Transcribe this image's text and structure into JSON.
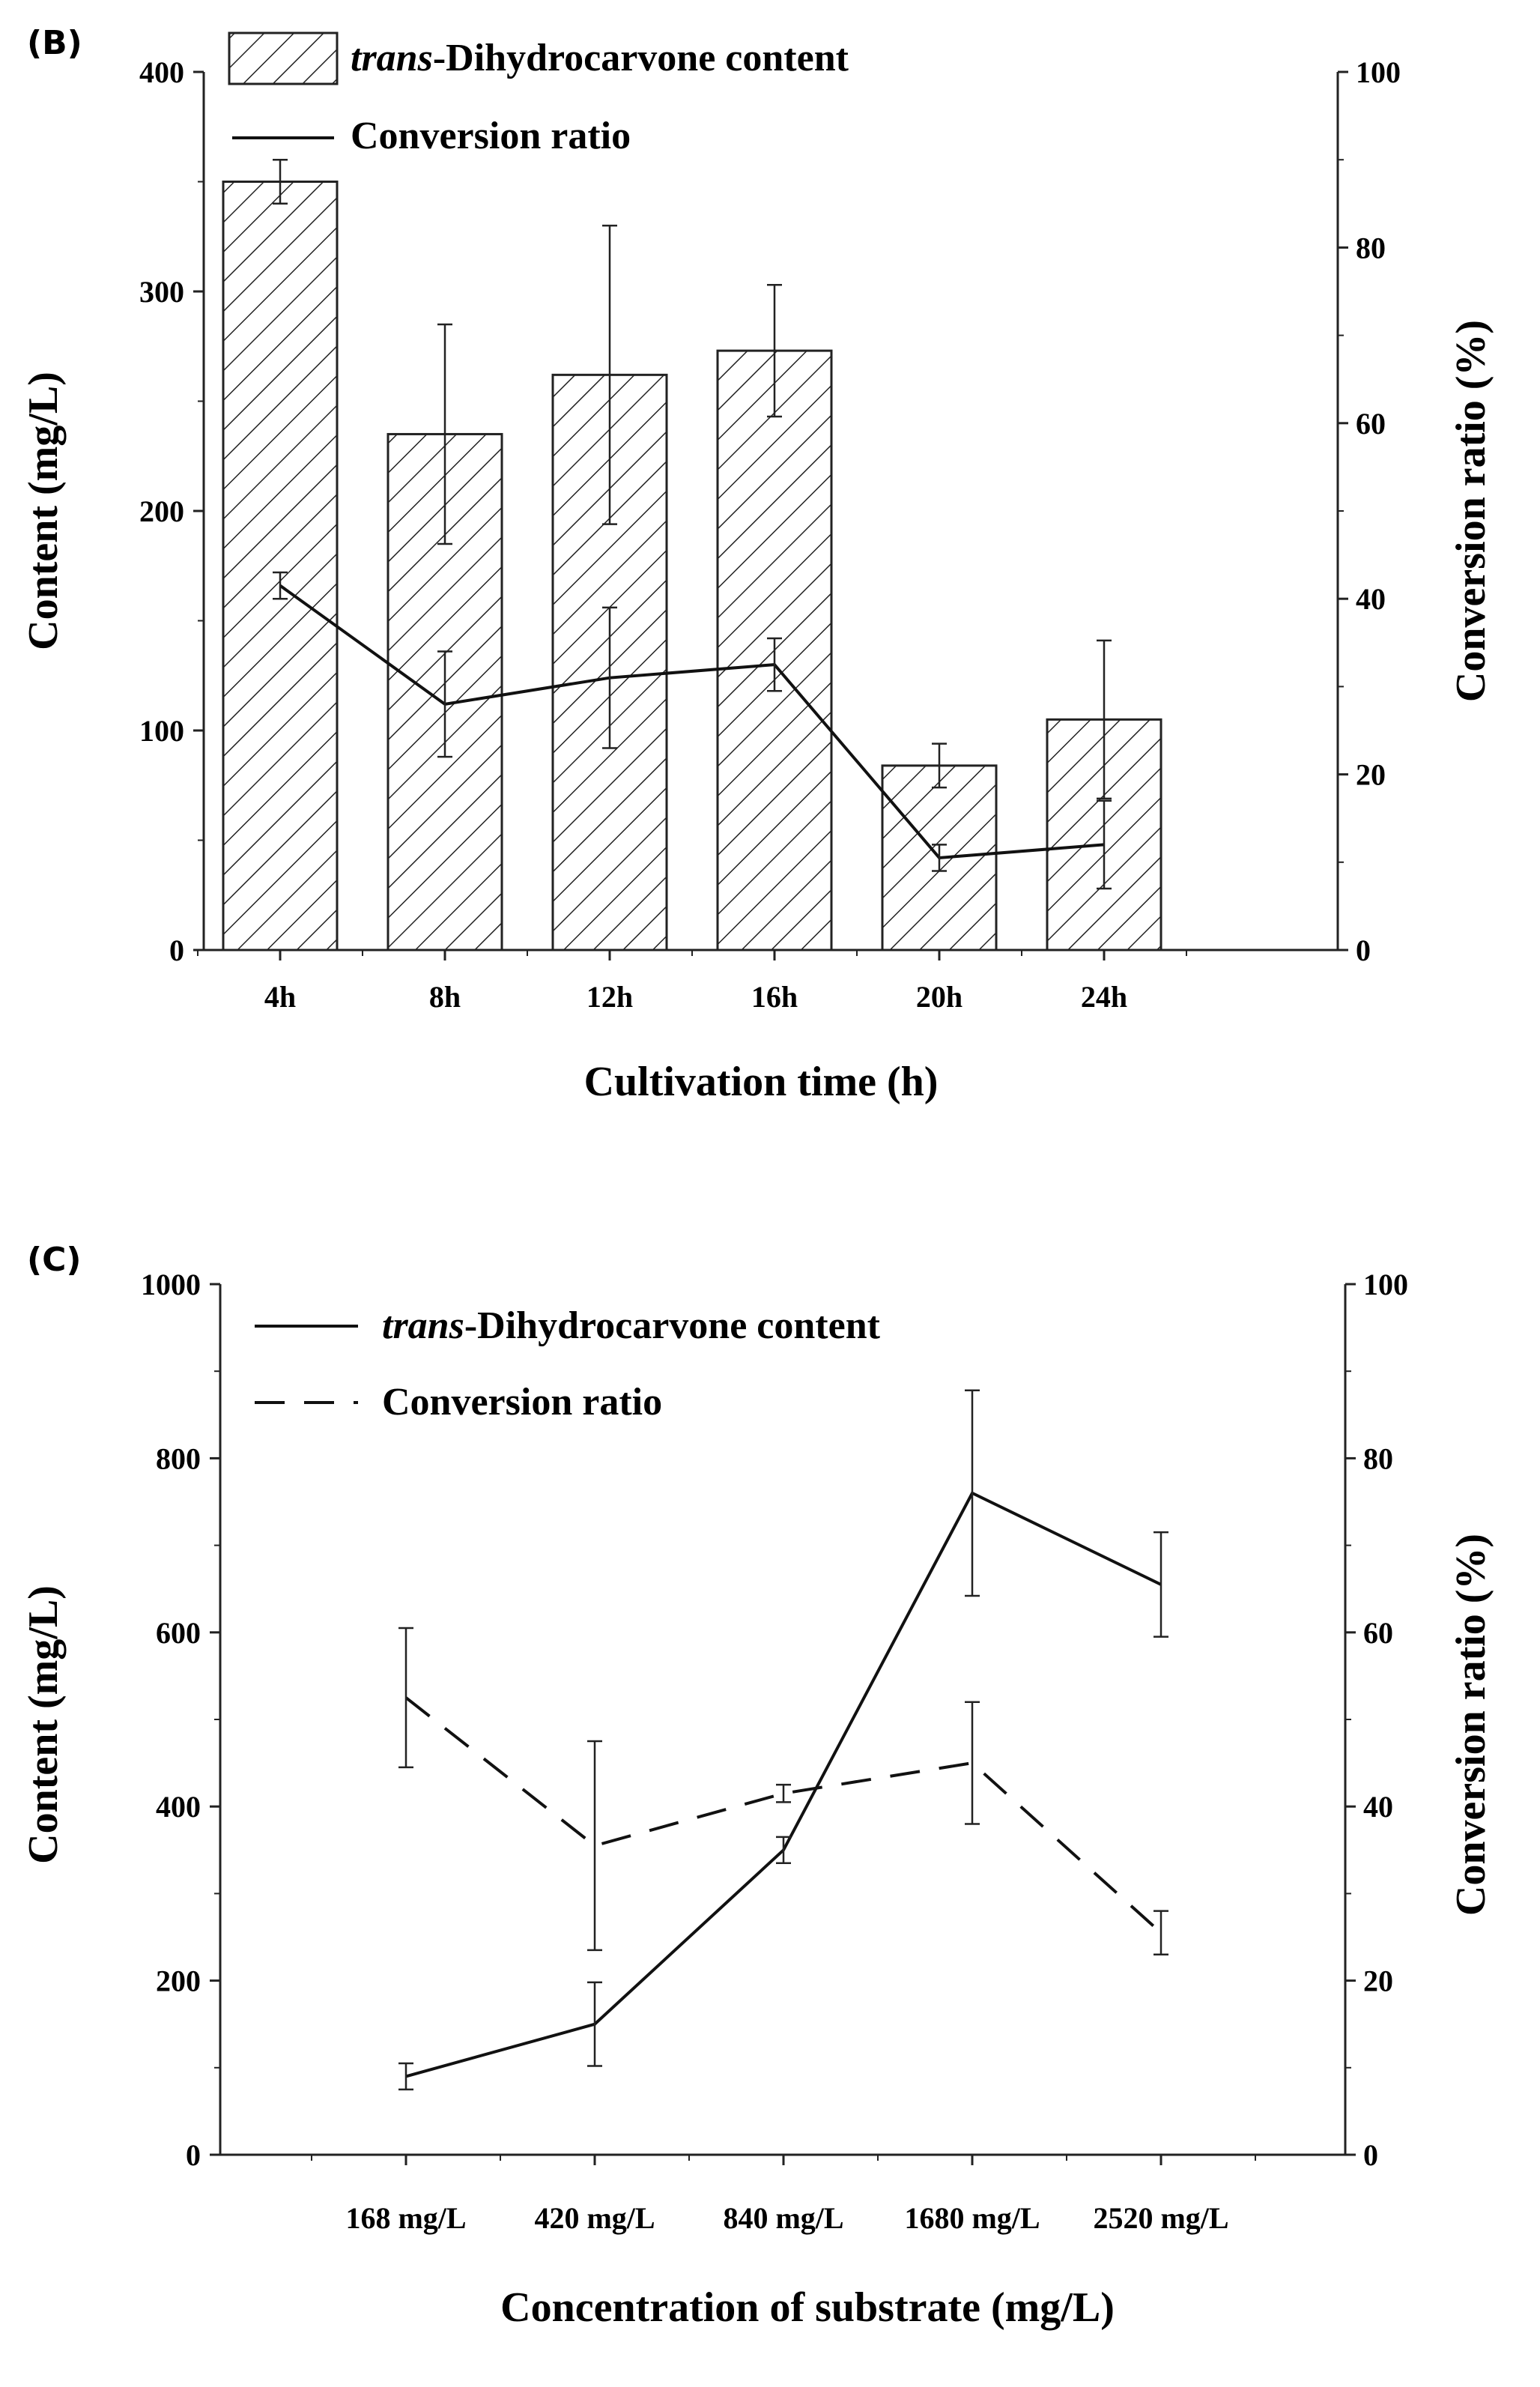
{
  "chart_data": [
    {
      "panel_label": "(B)",
      "type": "bar",
      "title": "",
      "categories": [
        "4h",
        "8h",
        "12h",
        "16h",
        "20h",
        "24h"
      ],
      "xlabel": "Cultivation time (h)",
      "ylabel": "Content (mg/L)",
      "y2label": "Conversion ratio (%)",
      "ylim": [
        0,
        400
      ],
      "y2lim": [
        0,
        100
      ],
      "yticks": [
        "0",
        "100",
        "200",
        "300",
        "400"
      ],
      "y2ticks": [
        "0",
        "20",
        "40",
        "60",
        "80",
        "100"
      ],
      "series": [
        {
          "name_italic": "trans",
          "name_rest": "-Dihydrocarvone content",
          "kind": "bar",
          "axis": "left",
          "values": [
            350,
            235,
            262,
            273,
            84,
            105
          ],
          "errors": [
            10,
            50,
            68,
            30,
            10,
            36
          ]
        },
        {
          "name": "Conversion ratio",
          "kind": "line",
          "axis": "right",
          "values": [
            41.5,
            28,
            31,
            32.5,
            10.5,
            12
          ],
          "errors": [
            1.5,
            6,
            8,
            3,
            1.5,
            5
          ]
        }
      ],
      "legend": "top-left"
    },
    {
      "panel_label": "(C)",
      "type": "line",
      "title": "",
      "categories": [
        "168 mg/L",
        "420 mg/L",
        "840 mg/L",
        "1680 mg/L",
        "2520 mg/L"
      ],
      "xlabel": "Concentration of substrate (mg/L)",
      "ylabel": "Content (mg/L)",
      "y2label": "Conversion ratio (%)",
      "ylim": [
        0,
        1000
      ],
      "y2lim": [
        0,
        100
      ],
      "yticks": [
        "0",
        "200",
        "400",
        "600",
        "800",
        "1000"
      ],
      "y2ticks": [
        "0",
        "20",
        "40",
        "60",
        "80",
        "100"
      ],
      "series": [
        {
          "name_italic": "trans",
          "name_rest": "-Dihydrocarvone content",
          "kind": "solid",
          "axis": "left",
          "values": [
            90,
            150,
            350,
            760,
            655
          ],
          "errors": [
            15,
            48,
            15,
            118,
            60
          ]
        },
        {
          "name": "Conversion ratio",
          "kind": "dashed",
          "axis": "right",
          "values": [
            52.5,
            35.5,
            41.5,
            45,
            25.5
          ],
          "errors": [
            8,
            12,
            1,
            7,
            2.5
          ]
        }
      ],
      "legend": "top-left"
    }
  ]
}
